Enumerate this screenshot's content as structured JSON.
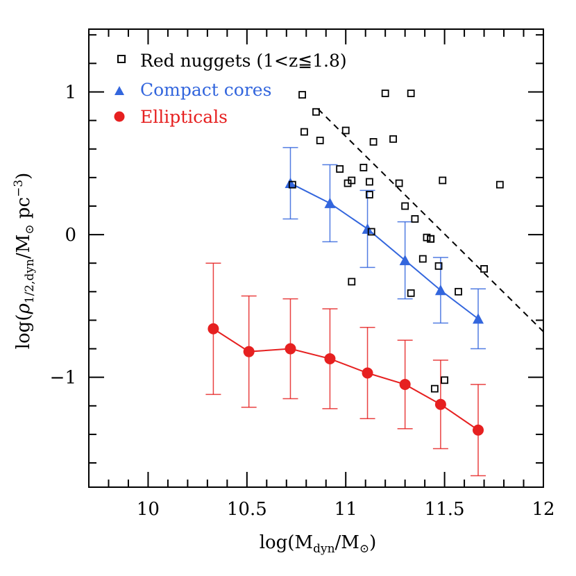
{
  "chart_data": {
    "type": "scatter",
    "title": "",
    "xlabel": "log(M_dyn/M_⊙)",
    "ylabel": "log(ρ_1/2,dyn/M_⊙ pc^-3)",
    "xlabel_parts": {
      "pre": "log(M",
      "sub1": "dyn",
      "mid": "/M",
      "sun": "⊙",
      "post": ")"
    },
    "ylabel_parts": {
      "pre": "log(",
      "rho": "ρ",
      "sub": "1/2,dyn",
      "mid": "/M",
      "sun": "⊙",
      "space": " pc",
      "sup": "−3",
      "post": ")"
    },
    "xlim": [
      9.7,
      12.0
    ],
    "ylim": [
      -1.77,
      1.44
    ],
    "xticks": [
      10,
      10.5,
      11,
      11.5,
      12
    ],
    "xtick_labels": [
      "10",
      "10.5",
      "11",
      "11.5",
      "12"
    ],
    "yticks": [
      -1,
      0,
      1
    ],
    "ytick_labels": [
      "−1",
      "0",
      "1"
    ],
    "legend": {
      "position": "top-left",
      "entries": [
        {
          "label": "Red nuggets (1<z≦1.8)",
          "marker": "open-square",
          "color": "#000000"
        },
        {
          "label": "Compact cores",
          "marker": "triangle",
          "color": "#3366dd"
        },
        {
          "label": "Ellipticals",
          "marker": "circle",
          "color": "#e62020"
        }
      ]
    },
    "series": [
      {
        "name": "Red nuggets (1<z≦1.8)",
        "marker": "open-square",
        "color": "#000000",
        "x": [
          10.73,
          10.78,
          10.79,
          10.85,
          10.87,
          10.97,
          11.0,
          11.01,
          11.03,
          11.03,
          11.09,
          11.12,
          11.12,
          11.13,
          11.14,
          11.2,
          11.24,
          11.27,
          11.3,
          11.33,
          11.33,
          11.35,
          11.39,
          11.41,
          11.43,
          11.43,
          11.45,
          11.47,
          11.49,
          11.5,
          11.57,
          11.7,
          11.78
        ],
        "y": [
          0.35,
          0.98,
          0.72,
          0.86,
          0.66,
          0.46,
          0.73,
          0.36,
          -0.33,
          0.38,
          0.47,
          0.37,
          0.28,
          0.02,
          0.65,
          0.99,
          0.67,
          0.36,
          0.2,
          0.99,
          -0.41,
          0.11,
          -0.17,
          -0.02,
          -0.03,
          -0.03,
          -1.08,
          -0.22,
          0.38,
          -1.02,
          -0.4,
          -0.24,
          0.35
        ]
      },
      {
        "name": "Compact cores",
        "marker": "triangle",
        "color": "#3366dd",
        "x": [
          10.72,
          10.92,
          11.11,
          11.3,
          11.48,
          11.67
        ],
        "y": [
          0.36,
          0.22,
          0.04,
          -0.18,
          -0.39,
          -0.59
        ],
        "yerr": [
          0.25,
          0.27,
          0.27,
          0.27,
          0.23,
          0.21
        ]
      },
      {
        "name": "Ellipticals",
        "marker": "circle",
        "color": "#e62020",
        "x": [
          10.33,
          10.51,
          10.72,
          10.92,
          11.11,
          11.3,
          11.48,
          11.67
        ],
        "y": [
          -0.66,
          -0.82,
          -0.8,
          -0.87,
          -0.97,
          -1.05,
          -1.19,
          -1.37
        ],
        "yerr": [
          0.46,
          0.39,
          0.35,
          0.35,
          0.32,
          0.31,
          0.31,
          0.32
        ]
      }
    ],
    "reference_line": {
      "style": "dashed",
      "color": "#000000",
      "x": [
        10.86,
        12.0
      ],
      "y": [
        0.88,
        -0.68
      ]
    }
  }
}
